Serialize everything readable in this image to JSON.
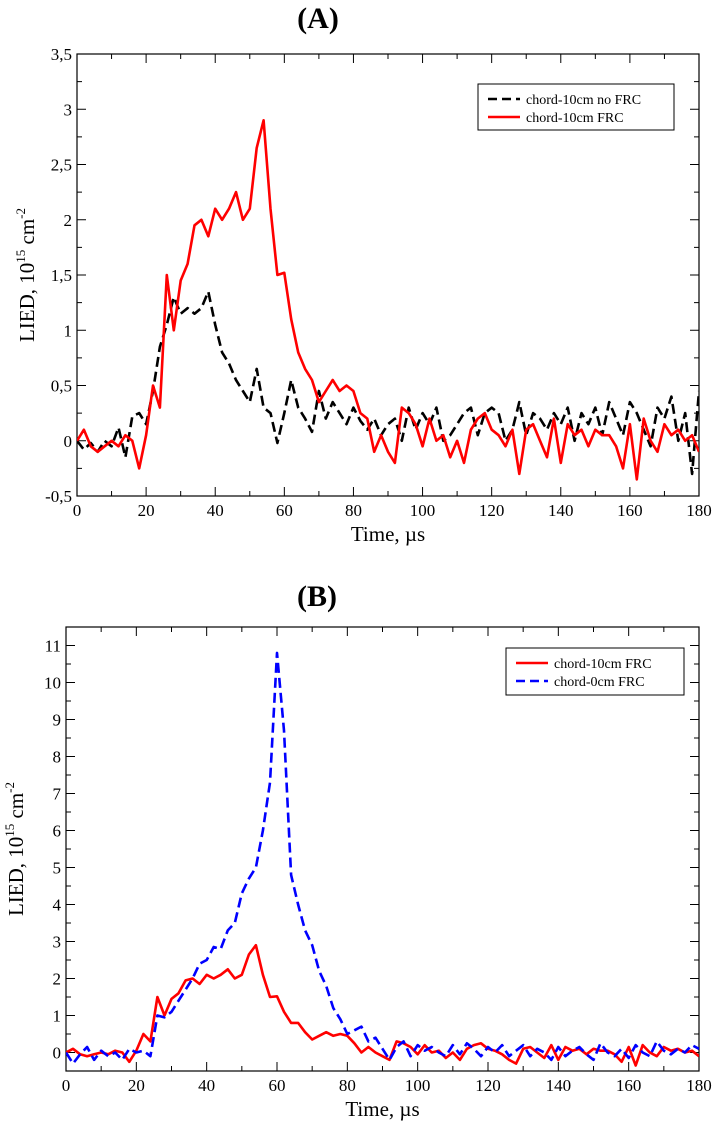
{
  "chart_data": [
    {
      "panel": "(A)",
      "type": "line",
      "xlabel": "Time, µs",
      "ylabel": "LIED, 10",
      "ylabel_exp": "15",
      "ylabel_unit": " cm",
      "ylabel_unit_exp": "-2",
      "xlim": [
        0,
        180
      ],
      "ylim": [
        -0.5,
        3.5
      ],
      "xticks": [
        0,
        20,
        40,
        60,
        80,
        100,
        120,
        140,
        160,
        180
      ],
      "xtick_labels": [
        "0",
        "20",
        "40",
        "60",
        "80",
        "100",
        "120",
        "140",
        "160",
        "180"
      ],
      "yticks": [
        -0.5,
        0,
        0.5,
        1,
        1.5,
        2,
        2.5,
        3,
        3.5
      ],
      "ytick_labels": [
        "-0,5",
        "0",
        "0,5",
        "1",
        "1,5",
        "2",
        "2,5",
        "3",
        "3,5"
      ],
      "legend_position": "top-right",
      "series": [
        {
          "name": "chord-10cm no FRC",
          "color": "#000000",
          "style": "dashed",
          "x": [
            0,
            2,
            4,
            6,
            8,
            10,
            12,
            14,
            16,
            18,
            20,
            22,
            24,
            26,
            28,
            30,
            32,
            34,
            36,
            38,
            40,
            42,
            44,
            46,
            48,
            50,
            52,
            54,
            56,
            58,
            60,
            62,
            64,
            66,
            68,
            70,
            72,
            74,
            76,
            78,
            80,
            82,
            84,
            86,
            88,
            90,
            92,
            94,
            96,
            98,
            100,
            102,
            104,
            106,
            108,
            110,
            112,
            114,
            116,
            118,
            120,
            122,
            124,
            126,
            128,
            130,
            132,
            134,
            136,
            138,
            140,
            142,
            144,
            146,
            148,
            150,
            152,
            154,
            156,
            158,
            160,
            162,
            164,
            166,
            168,
            170,
            172,
            174,
            176,
            178,
            180
          ],
          "values": [
            0.0,
            -0.08,
            -0.02,
            -0.1,
            0.0,
            -0.05,
            0.12,
            -0.15,
            0.22,
            0.25,
            0.15,
            0.45,
            0.85,
            1.05,
            1.3,
            1.15,
            1.2,
            1.15,
            1.2,
            1.35,
            1.05,
            0.8,
            0.7,
            0.55,
            0.45,
            0.35,
            0.65,
            0.3,
            0.25,
            -0.02,
            0.25,
            0.55,
            0.3,
            0.2,
            0.08,
            0.45,
            0.2,
            0.35,
            0.25,
            0.15,
            0.3,
            0.18,
            0.1,
            0.2,
            0.05,
            0.15,
            0.2,
            0.0,
            0.3,
            0.1,
            0.25,
            0.15,
            0.3,
            0.0,
            0.05,
            0.15,
            0.25,
            0.3,
            0.05,
            0.25,
            0.3,
            0.25,
            0.0,
            0.1,
            0.35,
            0.05,
            0.25,
            0.2,
            0.1,
            0.25,
            0.15,
            0.3,
            0.0,
            0.25,
            0.15,
            0.3,
            0.05,
            0.35,
            0.2,
            0.05,
            0.35,
            0.25,
            0.1,
            -0.05,
            0.3,
            0.2,
            0.4,
            0.0,
            0.25,
            -0.3,
            0.45
          ]
        },
        {
          "name": "chord-10cm FRC",
          "color": "#ff0000",
          "style": "solid",
          "x": [
            0,
            2,
            4,
            6,
            8,
            10,
            12,
            14,
            16,
            18,
            20,
            22,
            24,
            26,
            28,
            30,
            32,
            34,
            36,
            38,
            40,
            42,
            44,
            46,
            48,
            50,
            52,
            54,
            56,
            58,
            60,
            62,
            64,
            66,
            68,
            70,
            72,
            74,
            76,
            78,
            80,
            82,
            84,
            86,
            88,
            90,
            92,
            94,
            96,
            98,
            100,
            102,
            104,
            106,
            108,
            110,
            112,
            114,
            116,
            118,
            120,
            122,
            124,
            126,
            128,
            130,
            132,
            134,
            136,
            138,
            140,
            142,
            144,
            146,
            148,
            150,
            152,
            154,
            156,
            158,
            160,
            162,
            164,
            166,
            168,
            170,
            172,
            174,
            176,
            178,
            180
          ],
          "values": [
            0.0,
            0.1,
            -0.05,
            -0.1,
            -0.05,
            0.0,
            -0.05,
            0.05,
            0.0,
            -0.25,
            0.05,
            0.5,
            0.3,
            1.5,
            1.0,
            1.45,
            1.6,
            1.95,
            2.0,
            1.85,
            2.1,
            2.0,
            2.1,
            2.25,
            2.0,
            2.1,
            2.65,
            2.9,
            2.1,
            1.5,
            1.52,
            1.1,
            0.8,
            0.65,
            0.55,
            0.35,
            0.45,
            0.55,
            0.45,
            0.5,
            0.45,
            0.25,
            0.2,
            -0.1,
            0.05,
            -0.1,
            -0.2,
            0.3,
            0.25,
            0.15,
            -0.05,
            0.2,
            0.0,
            0.05,
            -0.15,
            0.0,
            -0.2,
            0.1,
            0.2,
            0.25,
            0.1,
            0.05,
            -0.05,
            0.1,
            -0.3,
            0.1,
            0.15,
            0.0,
            -0.15,
            0.2,
            -0.2,
            0.15,
            0.05,
            0.1,
            -0.05,
            0.1,
            0.05,
            0.05,
            -0.05,
            -0.25,
            0.15,
            -0.35,
            0.2,
            0.0,
            -0.1,
            0.15,
            0.05,
            0.1,
            0.0,
            0.05,
            -0.1
          ]
        }
      ]
    },
    {
      "panel": "(B)",
      "type": "line",
      "xlabel": "Time, µs",
      "ylabel": "LIED, 10",
      "ylabel_exp": "15",
      "ylabel_unit": " cm",
      "ylabel_unit_exp": "-2",
      "xlim": [
        0,
        180
      ],
      "ylim": [
        -0.5,
        11.5
      ],
      "xticks": [
        0,
        20,
        40,
        60,
        80,
        100,
        120,
        140,
        160,
        180
      ],
      "xtick_labels": [
        "0",
        "20",
        "40",
        "60",
        "80",
        "100",
        "120",
        "140",
        "160",
        "180"
      ],
      "yticks": [
        0,
        1,
        2,
        3,
        4,
        5,
        6,
        7,
        8,
        9,
        10,
        11
      ],
      "ytick_labels": [
        "0",
        "1",
        "2",
        "3",
        "4",
        "5",
        "6",
        "7",
        "8",
        "9",
        "10",
        "11"
      ],
      "legend_position": "top-right",
      "series": [
        {
          "name": "chord-10cm FRC",
          "color": "#ff0000",
          "style": "solid",
          "x": [
            0,
            2,
            4,
            6,
            8,
            10,
            12,
            14,
            16,
            18,
            20,
            22,
            24,
            26,
            28,
            30,
            32,
            34,
            36,
            38,
            40,
            42,
            44,
            46,
            48,
            50,
            52,
            54,
            56,
            58,
            60,
            62,
            64,
            66,
            68,
            70,
            72,
            74,
            76,
            78,
            80,
            82,
            84,
            86,
            88,
            90,
            92,
            94,
            96,
            98,
            100,
            102,
            104,
            106,
            108,
            110,
            112,
            114,
            116,
            118,
            120,
            122,
            124,
            126,
            128,
            130,
            132,
            134,
            136,
            138,
            140,
            142,
            144,
            146,
            148,
            150,
            152,
            154,
            156,
            158,
            160,
            162,
            164,
            166,
            168,
            170,
            172,
            174,
            176,
            178,
            180
          ],
          "values": [
            0.0,
            0.1,
            -0.05,
            -0.1,
            -0.05,
            0.0,
            -0.05,
            0.05,
            0.0,
            -0.25,
            0.05,
            0.5,
            0.3,
            1.5,
            1.0,
            1.45,
            1.6,
            1.95,
            2.0,
            1.85,
            2.1,
            2.0,
            2.1,
            2.25,
            2.0,
            2.1,
            2.65,
            2.9,
            2.1,
            1.5,
            1.52,
            1.1,
            0.8,
            0.8,
            0.55,
            0.35,
            0.45,
            0.55,
            0.45,
            0.5,
            0.45,
            0.25,
            0.0,
            0.15,
            0.0,
            -0.1,
            -0.2,
            0.3,
            0.25,
            0.15,
            -0.05,
            0.2,
            0.0,
            0.05,
            -0.15,
            0.0,
            -0.2,
            0.1,
            0.2,
            0.25,
            0.1,
            0.05,
            -0.05,
            -0.2,
            -0.3,
            0.1,
            0.15,
            0.0,
            -0.15,
            0.2,
            -0.2,
            0.15,
            0.05,
            0.1,
            -0.05,
            0.1,
            0.05,
            0.05,
            -0.05,
            -0.25,
            0.15,
            -0.35,
            0.2,
            0.0,
            -0.1,
            0.15,
            0.05,
            0.1,
            0.0,
            0.05,
            -0.1
          ]
        },
        {
          "name": "chord-0cm  FRC",
          "color": "#0000ff",
          "style": "dashed",
          "x": [
            0,
            2,
            4,
            6,
            8,
            10,
            12,
            14,
            16,
            18,
            20,
            22,
            24,
            26,
            28,
            30,
            32,
            34,
            36,
            38,
            40,
            42,
            44,
            46,
            48,
            50,
            52,
            54,
            56,
            58,
            60,
            62,
            64,
            66,
            68,
            70,
            72,
            74,
            76,
            78,
            80,
            82,
            84,
            86,
            88,
            90,
            92,
            94,
            96,
            98,
            100,
            102,
            104,
            106,
            108,
            110,
            112,
            114,
            116,
            118,
            120,
            122,
            124,
            126,
            128,
            130,
            132,
            134,
            136,
            138,
            140,
            142,
            144,
            146,
            148,
            150,
            152,
            154,
            156,
            158,
            160,
            162,
            164,
            166,
            168,
            170,
            172,
            174,
            176,
            178,
            180
          ],
          "values": [
            0.0,
            -0.3,
            -0.05,
            0.15,
            -0.2,
            0.05,
            -0.1,
            0.0,
            -0.2,
            0.1,
            0.0,
            0.05,
            -0.1,
            1.0,
            0.95,
            1.1,
            1.4,
            1.7,
            2.0,
            2.4,
            2.5,
            2.85,
            2.8,
            3.3,
            3.5,
            4.3,
            4.7,
            5.0,
            6.0,
            7.3,
            10.8,
            8.7,
            4.8,
            4.0,
            3.3,
            2.9,
            2.2,
            1.8,
            1.2,
            0.9,
            0.5,
            0.6,
            0.7,
            0.3,
            0.4,
            0.1,
            -0.2,
            0.15,
            0.3,
            -0.1,
            0.2,
            0.05,
            0.15,
            0.0,
            -0.1,
            0.2,
            -0.05,
            0.25,
            0.1,
            -0.1,
            0.15,
            0.0,
            0.2,
            -0.1,
            0.05,
            0.2,
            -0.1,
            0.1,
            0.0,
            -0.2,
            0.15,
            -0.1,
            0.05,
            0.15,
            -0.05,
            -0.2,
            0.25,
            0.0,
            -0.1,
            0.1,
            -0.15,
            0.2,
            0.0,
            -0.1,
            0.3,
            0.05,
            -0.05,
            0.1,
            0.0,
            0.2,
            0.1
          ]
        }
      ]
    }
  ]
}
